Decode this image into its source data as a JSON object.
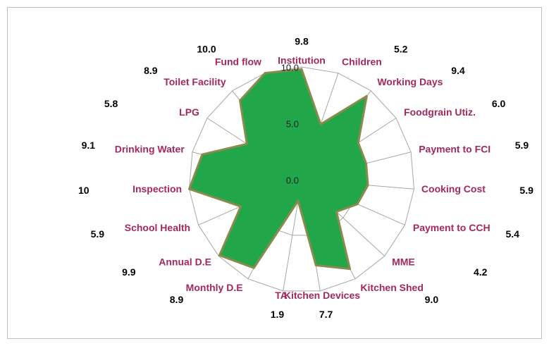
{
  "chart_data": {
    "type": "radar",
    "categories": [
      "Institution",
      "Children",
      "Working Days",
      "Foodgrain Utiz.",
      "Payment to FCI",
      "Cooking Cost",
      "Payment to CCH",
      "MME",
      "Kitchen Shed",
      "Kitchen Devices",
      "TA",
      "Monthly D.E",
      "Annual D.E",
      "School Health",
      "Inspection",
      "Drinking Water",
      "LPG",
      "Toilet Facility",
      "Fund flow"
    ],
    "values": [
      9.8,
      5.2,
      9.4,
      6.0,
      5.9,
      5.9,
      5.4,
      4.2,
      9.0,
      7.7,
      1.9,
      8.9,
      9.9,
      5.9,
      10,
      9.1,
      5.8,
      8.9,
      10.0
    ],
    "value_labels": [
      "9.8",
      "5.2",
      "9.4",
      "6.0",
      "5.9",
      "5.9",
      "5.4",
      "4.2",
      "9.0",
      "7.7",
      "1.9",
      "8.9",
      "9.9",
      "5.9",
      "10",
      "9.1",
      "5.8",
      "8.9",
      "10.0"
    ],
    "color": "#21a64a",
    "ylim": [
      0,
      10
    ],
    "yticks": [
      {
        "value": 0,
        "label": "0.0"
      },
      {
        "value": 5,
        "label": "5.0"
      },
      {
        "value": 10,
        "label": "10.0"
      }
    ],
    "grid": true
  }
}
